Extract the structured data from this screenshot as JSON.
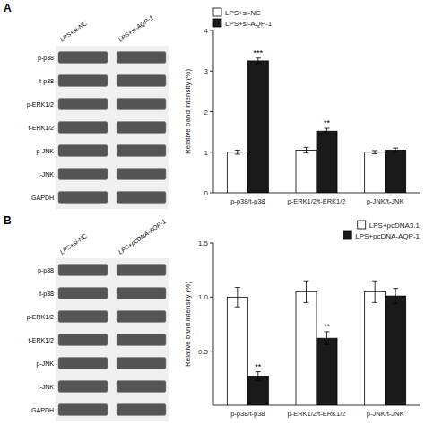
{
  "chart_data": [
    {
      "type": "bar",
      "title": "A",
      "categories": [
        "p-p38/t-p38",
        "p-ERK1/2/t-ERK1/2",
        "p-JNK/t-JNK"
      ],
      "series": [
        {
          "name": "LPS+si-NC",
          "color": "#ffffff",
          "values": [
            1.0,
            1.05,
            1.0
          ],
          "errors": [
            0.05,
            0.07,
            0.04
          ]
        },
        {
          "name": "LPS+si-AQP-1",
          "color": "#1a1a1a",
          "values": [
            3.25,
            1.52,
            1.05
          ],
          "errors": [
            0.07,
            0.07,
            0.05
          ],
          "annotations": [
            "***",
            "**",
            null
          ]
        }
      ],
      "y_label": "Relative band intensity (%)",
      "ylim": [
        0,
        4
      ],
      "yticks": [
        0,
        1,
        2,
        3,
        4
      ],
      "grid": false,
      "legend": "upper left",
      "annotations": {
        "columns": [
          "LPS+si-NC",
          "LPS+si-AQP-1"
        ],
        "rows": [
          "p-p38",
          "t-p38",
          "p-ERK1/2",
          "t-ERK1/2",
          "p-JNK",
          "t-JNK",
          "GAPDH"
        ]
      }
    },
    {
      "type": "bar",
      "title": "B",
      "categories": [
        "p-p38/t-p38",
        "p-ERK1/2/t-ERK1/2",
        "p-JNK/t-JNK"
      ],
      "series": [
        {
          "name": "LPS+pcDNA3.1",
          "color": "#ffffff",
          "values": [
            1.0,
            1.05,
            1.05
          ],
          "errors": [
            0.09,
            0.1,
            0.1
          ]
        },
        {
          "name": "LPS+pcDNA-AQP-1",
          "color": "#1a1a1a",
          "values": [
            0.27,
            0.62,
            1.01
          ],
          "errors": [
            0.04,
            0.06,
            0.07
          ],
          "annotations": [
            "**",
            "**",
            null
          ]
        }
      ],
      "y_label": "Relative band intensity (%)",
      "ylim": [
        0,
        1.5
      ],
      "yticks": [
        0.5,
        {
          "value": 1.0,
          "label": "1.0"
        },
        1.5
      ],
      "grid": false,
      "legend": "upper right",
      "annotations": {
        "columns": [
          "LPS+si-NC",
          "LPS+pcDNA-AQP-1"
        ],
        "rows": [
          "p-p38",
          "t-p38",
          "p-ERK1/2",
          "t-ERK1/2",
          "p-JNK",
          "t-JNK",
          "GAPDH"
        ]
      }
    }
  ]
}
